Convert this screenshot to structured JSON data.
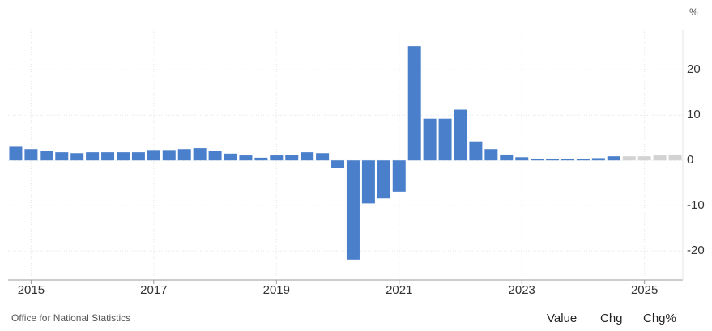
{
  "chart_data": {
    "type": "bar",
    "unit": "%",
    "source": "Office for National Statistics",
    "buttons": [
      "Value",
      "Chg",
      "Chg%"
    ],
    "categories": [
      null,
      "2015",
      null,
      null,
      null,
      null,
      null,
      null,
      null,
      "2017",
      null,
      null,
      null,
      null,
      null,
      null,
      null,
      "2019",
      null,
      null,
      null,
      null,
      null,
      null,
      null,
      "2021",
      null,
      null,
      null,
      null,
      null,
      null,
      null,
      "2023",
      null,
      null,
      null,
      null,
      null,
      null,
      null,
      "2025",
      null,
      null
    ],
    "values": [
      3.0,
      2.5,
      2.1,
      1.8,
      1.6,
      1.8,
      1.8,
      1.8,
      1.8,
      2.3,
      2.3,
      2.5,
      2.7,
      2.1,
      1.5,
      1.1,
      0.6,
      1.1,
      1.2,
      1.8,
      1.6,
      -1.6,
      -21.9,
      -9.5,
      -8.4,
      -6.9,
      25.2,
      9.2,
      9.2,
      11.2,
      4.2,
      2.5,
      1.3,
      0.7,
      0.4,
      0.4,
      0.4,
      0.4,
      0.5,
      0.9,
      0.9,
      0.9,
      1.1,
      1.3
    ],
    "colors": [
      "#4a7fcb",
      "#4a7fcb",
      "#4a7fcb",
      "#4a7fcb",
      "#4a7fcb",
      "#4a7fcb",
      "#4a7fcb",
      "#4a7fcb",
      "#4a7fcb",
      "#4a7fcb",
      "#4a7fcb",
      "#4a7fcb",
      "#4a7fcb",
      "#4a7fcb",
      "#4a7fcb",
      "#4a7fcb",
      "#4a7fcb",
      "#4a7fcb",
      "#4a7fcb",
      "#4a7fcb",
      "#4a7fcb",
      "#4a7fcb",
      "#4a7fcb",
      "#4a7fcb",
      "#4a7fcb",
      "#4a7fcb",
      "#4a7fcb",
      "#4a7fcb",
      "#4a7fcb",
      "#4a7fcb",
      "#4a7fcb",
      "#4a7fcb",
      "#4a7fcb",
      "#4a7fcb",
      "#4a7fcb",
      "#4a7fcb",
      "#4a7fcb",
      "#4a7fcb",
      "#4a7fcb",
      "#4a7fcb",
      "#d3d3d3",
      "#d3d3d3",
      "#d3d3d3",
      "#d3d3d3"
    ],
    "ylim": [
      -26.4,
      28.8
    ],
    "yticks": [
      -20,
      -10,
      0,
      10,
      20
    ],
    "grid": true
  }
}
